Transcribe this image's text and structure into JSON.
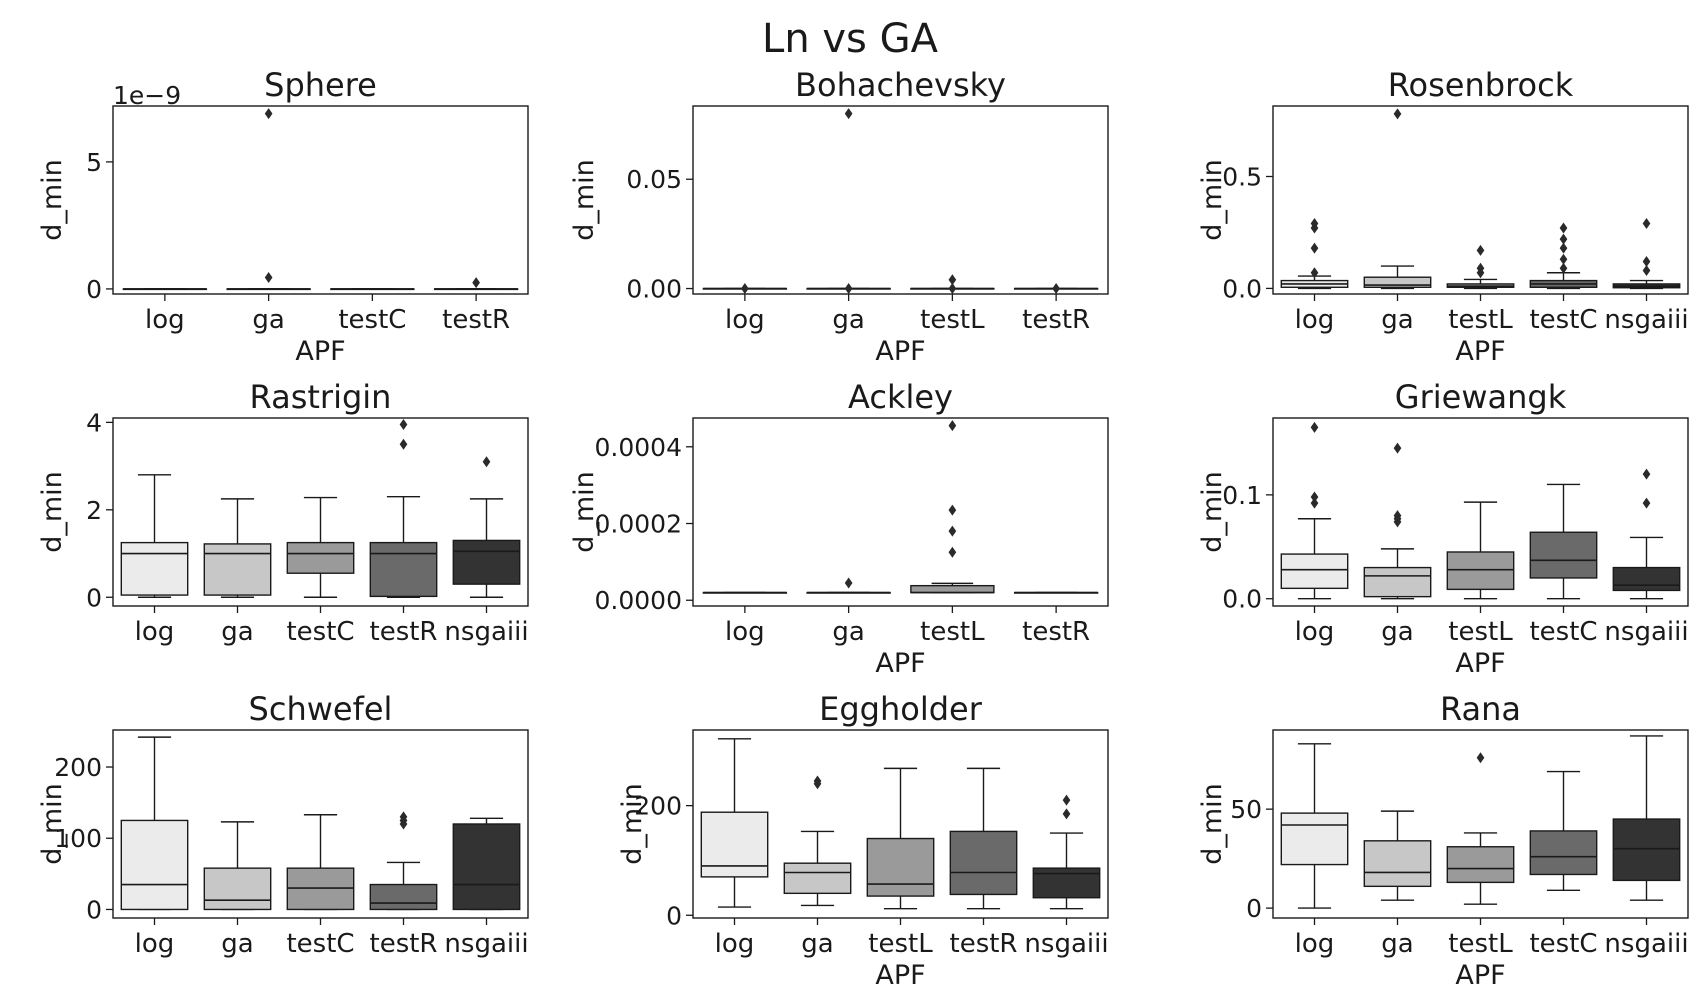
{
  "figure": {
    "title": "Ln vs GA"
  },
  "palette": [
    "#ebebeb",
    "#c7c7c7",
    "#9a9a9a",
    "#6a6a6a",
    "#333333"
  ],
  "chart_data": [
    {
      "type": "box",
      "title": "Sphere",
      "xlabel": "APF",
      "ylabel": "d_min",
      "scale_note": "1e−9",
      "ylim": [
        -0.2,
        7.2
      ],
      "yticks": [
        0,
        5
      ],
      "ytick_labels": [
        "0",
        "5"
      ],
      "categories": [
        "log",
        "ga",
        "testC",
        "testR"
      ],
      "boxes": [
        {
          "whislo": 0,
          "q1": 0,
          "med": 0,
          "q3": 0,
          "whishi": 0,
          "fliers": []
        },
        {
          "whislo": 0,
          "q1": 0,
          "med": 0,
          "q3": 0,
          "whishi": 0,
          "fliers": [
            6.9,
            0.45
          ]
        },
        {
          "whislo": 0,
          "q1": 0,
          "med": 0,
          "q3": 0,
          "whishi": 0,
          "fliers": []
        },
        {
          "whislo": 0,
          "q1": 0,
          "med": 0,
          "q3": 0,
          "whishi": 0,
          "fliers": [
            0.25
          ]
        }
      ]
    },
    {
      "type": "box",
      "title": "Bohachevsky",
      "xlabel": "APF",
      "ylabel": "d_min",
      "ylim": [
        -0.0025,
        0.0835
      ],
      "yticks": [
        0,
        0.05
      ],
      "ytick_labels": [
        "0.00",
        "0.05"
      ],
      "categories": [
        "log",
        "ga",
        "testL",
        "testR"
      ],
      "boxes": [
        {
          "whislo": 0,
          "q1": 0,
          "med": 0,
          "q3": 0,
          "whishi": 0,
          "fliers": [
            0
          ]
        },
        {
          "whislo": 0,
          "q1": 0,
          "med": 0,
          "q3": 0,
          "whishi": 0,
          "fliers": [
            0.08,
            0
          ]
        },
        {
          "whislo": 0,
          "q1": 0,
          "med": 0,
          "q3": 0,
          "whishi": 0,
          "fliers": [
            0.004,
            0
          ]
        },
        {
          "whislo": 0,
          "q1": 0,
          "med": 0,
          "q3": 0,
          "whishi": 0,
          "fliers": [
            0
          ]
        }
      ]
    },
    {
      "type": "box",
      "title": "Rosenbrock",
      "xlabel": "APF",
      "ylabel": "d_min",
      "ylim": [
        -0.025,
        0.815
      ],
      "yticks": [
        0,
        0.5
      ],
      "ytick_labels": [
        "0.0",
        "0.5"
      ],
      "categories": [
        "log",
        "ga",
        "testL",
        "testC",
        "nsgaiii"
      ],
      "boxes": [
        {
          "whislo": 0,
          "q1": 0.005,
          "med": 0.02,
          "q3": 0.035,
          "whishi": 0.055,
          "fliers": [
            0.29,
            0.27,
            0.18,
            0.07
          ]
        },
        {
          "whislo": 0,
          "q1": 0.005,
          "med": 0.015,
          "q3": 0.05,
          "whishi": 0.1,
          "fliers": [
            0.78
          ]
        },
        {
          "whislo": 0,
          "q1": 0.005,
          "med": 0.01,
          "q3": 0.02,
          "whishi": 0.04,
          "fliers": [
            0.17,
            0.09,
            0.07
          ]
        },
        {
          "whislo": 0,
          "q1": 0.005,
          "med": 0.02,
          "q3": 0.035,
          "whishi": 0.07,
          "fliers": [
            0.27,
            0.22,
            0.18,
            0.13,
            0.09
          ]
        },
        {
          "whislo": 0,
          "q1": 0.003,
          "med": 0.01,
          "q3": 0.02,
          "whishi": 0.035,
          "fliers": [
            0.29,
            0.12,
            0.08
          ]
        }
      ]
    },
    {
      "type": "box",
      "title": "Rastrigin",
      "xlabel": "",
      "ylabel": "d_min",
      "ylim": [
        -0.2,
        4.1
      ],
      "yticks": [
        0,
        2,
        4
      ],
      "ytick_labels": [
        "0",
        "2",
        "4"
      ],
      "categories": [
        "log",
        "ga",
        "testC",
        "testR",
        "nsgaiii"
      ],
      "boxes": [
        {
          "whislo": 0,
          "q1": 0.05,
          "med": 1.0,
          "q3": 1.25,
          "whishi": 2.8,
          "fliers": []
        },
        {
          "whislo": 0,
          "q1": 0.05,
          "med": 1.0,
          "q3": 1.22,
          "whishi": 2.25,
          "fliers": []
        },
        {
          "whislo": 0,
          "q1": 0.55,
          "med": 1.0,
          "q3": 1.25,
          "whishi": 2.28,
          "fliers": []
        },
        {
          "whislo": 0,
          "q1": 0.02,
          "med": 1.0,
          "q3": 1.25,
          "whishi": 2.3,
          "fliers": [
            3.95,
            3.5
          ]
        },
        {
          "whislo": 0,
          "q1": 0.3,
          "med": 1.05,
          "q3": 1.3,
          "whishi": 2.25,
          "fliers": [
            3.1
          ]
        }
      ]
    },
    {
      "type": "box",
      "title": "Ackley",
      "xlabel": "APF",
      "ylabel": "d_min",
      "ylim": [
        -1.5e-05,
        0.000475
      ],
      "yticks": [
        0,
        0.0002,
        0.0004
      ],
      "ytick_labels": [
        "0.0000",
        "0.0002",
        "0.0004"
      ],
      "categories": [
        "log",
        "ga",
        "testL",
        "testR"
      ],
      "boxes": [
        {
          "whislo": 2e-05,
          "q1": 2e-05,
          "med": 2e-05,
          "q3": 2e-05,
          "whishi": 2e-05,
          "fliers": []
        },
        {
          "whislo": 2e-05,
          "q1": 2e-05,
          "med": 2e-05,
          "q3": 2e-05,
          "whishi": 2e-05,
          "fliers": [
            4.5e-05
          ]
        },
        {
          "whislo": 2e-05,
          "q1": 2e-05,
          "med": 2e-05,
          "q3": 3.8e-05,
          "whishi": 4.4e-05,
          "fliers": [
            0.000455,
            0.000235,
            0.00018,
            0.000125
          ]
        },
        {
          "whislo": 2e-05,
          "q1": 2e-05,
          "med": 2e-05,
          "q3": 2e-05,
          "whishi": 2e-05,
          "fliers": []
        }
      ]
    },
    {
      "type": "box",
      "title": "Griewangk",
      "xlabel": "APF",
      "ylabel": "d_min",
      "ylim": [
        -0.007,
        0.174
      ],
      "yticks": [
        0,
        0.1
      ],
      "ytick_labels": [
        "0.0",
        "0.1"
      ],
      "categories": [
        "log",
        "ga",
        "testL",
        "testC",
        "nsgaiii"
      ],
      "boxes": [
        {
          "whislo": 0,
          "q1": 0.01,
          "med": 0.028,
          "q3": 0.043,
          "whishi": 0.077,
          "fliers": [
            0.165,
            0.098,
            0.092
          ]
        },
        {
          "whislo": 0,
          "q1": 0.002,
          "med": 0.022,
          "q3": 0.03,
          "whishi": 0.048,
          "fliers": [
            0.145,
            0.08,
            0.077,
            0.074
          ]
        },
        {
          "whislo": 0,
          "q1": 0.009,
          "med": 0.028,
          "q3": 0.045,
          "whishi": 0.093,
          "fliers": []
        },
        {
          "whislo": 0,
          "q1": 0.02,
          "med": 0.037,
          "q3": 0.064,
          "whishi": 0.11,
          "fliers": []
        },
        {
          "whislo": 0,
          "q1": 0.008,
          "med": 0.013,
          "q3": 0.03,
          "whishi": 0.059,
          "fliers": [
            0.12,
            0.092
          ]
        }
      ]
    },
    {
      "type": "box",
      "title": "Schwefel",
      "xlabel": "",
      "ylabel": "d_min",
      "ylim": [
        -12,
        252
      ],
      "yticks": [
        0,
        100,
        200
      ],
      "ytick_labels": [
        "0",
        "100",
        "200"
      ],
      "categories": [
        "log",
        "ga",
        "testC",
        "testR",
        "nsgaiii"
      ],
      "boxes": [
        {
          "whislo": 0,
          "q1": 0,
          "med": 35,
          "q3": 125,
          "whishi": 242,
          "fliers": []
        },
        {
          "whislo": 0,
          "q1": 0,
          "med": 13,
          "q3": 58,
          "whishi": 123,
          "fliers": []
        },
        {
          "whislo": 0,
          "q1": 0,
          "med": 30,
          "q3": 58,
          "whishi": 133,
          "fliers": []
        },
        {
          "whislo": 0,
          "q1": 0,
          "med": 9,
          "q3": 35,
          "whishi": 66,
          "fliers": [
            130,
            125,
            120
          ]
        },
        {
          "whislo": 0,
          "q1": 0,
          "med": 35,
          "q3": 120,
          "whishi": 128,
          "fliers": []
        }
      ]
    },
    {
      "type": "box",
      "title": "Eggholder",
      "xlabel": "APF",
      "ylabel": "d_min",
      "ylim": [
        -5,
        338
      ],
      "yticks": [
        0,
        200
      ],
      "ytick_labels": [
        "0",
        "200"
      ],
      "categories": [
        "log",
        "ga",
        "testL",
        "testR",
        "nsgaiii"
      ],
      "boxes": [
        {
          "whislo": 15,
          "q1": 70,
          "med": 90,
          "q3": 188,
          "whishi": 322,
          "fliers": []
        },
        {
          "whislo": 18,
          "q1": 40,
          "med": 78,
          "q3": 95,
          "whishi": 153,
          "fliers": [
            245,
            240
          ]
        },
        {
          "whislo": 12,
          "q1": 35,
          "med": 57,
          "q3": 140,
          "whishi": 268,
          "fliers": []
        },
        {
          "whislo": 12,
          "q1": 38,
          "med": 78,
          "q3": 153,
          "whishi": 268,
          "fliers": []
        },
        {
          "whislo": 12,
          "q1": 32,
          "med": 76,
          "q3": 86,
          "whishi": 150,
          "fliers": [
            210,
            185
          ]
        }
      ]
    },
    {
      "type": "box",
      "title": "Rana",
      "xlabel": "APF",
      "ylabel": "d_min",
      "ylim": [
        -5,
        90
      ],
      "yticks": [
        0,
        50
      ],
      "ytick_labels": [
        "0",
        "50"
      ],
      "categories": [
        "log",
        "ga",
        "testL",
        "testC",
        "nsgaiii"
      ],
      "boxes": [
        {
          "whislo": 0,
          "q1": 22,
          "med": 42,
          "q3": 48,
          "whishi": 83,
          "fliers": []
        },
        {
          "whislo": 4,
          "q1": 11,
          "med": 18,
          "q3": 34,
          "whishi": 49,
          "fliers": []
        },
        {
          "whislo": 2,
          "q1": 13,
          "med": 20,
          "q3": 31,
          "whishi": 38,
          "fliers": [
            76
          ]
        },
        {
          "whislo": 9,
          "q1": 17,
          "med": 26,
          "q3": 39,
          "whishi": 69,
          "fliers": []
        },
        {
          "whislo": 4,
          "q1": 14,
          "med": 30,
          "q3": 45,
          "whishi": 87,
          "fliers": []
        }
      ]
    }
  ]
}
